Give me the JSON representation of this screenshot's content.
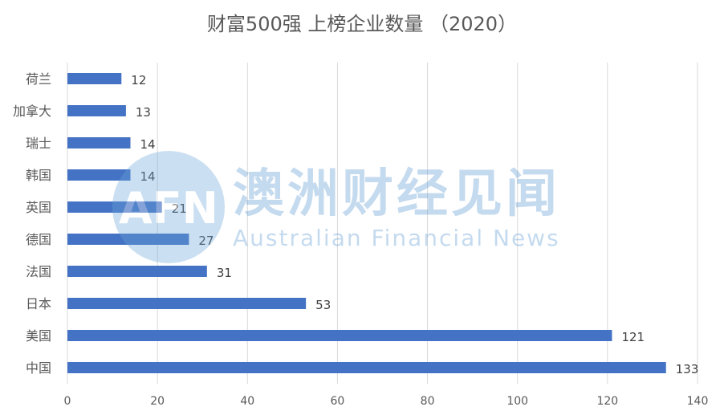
{
  "chart_data": {
    "type": "bar",
    "orientation": "horizontal",
    "title": "财富500强 上榜企业数量 （2020）",
    "categories": [
      "荷兰",
      "加拿大",
      "瑞士",
      "韩国",
      "英国",
      "德国",
      "法国",
      "日本",
      "美国",
      "中国"
    ],
    "values": [
      12,
      13,
      14,
      14,
      21,
      27,
      31,
      53,
      121,
      133
    ],
    "xlim": [
      0,
      140
    ],
    "xticks": [
      "0",
      "20",
      "40",
      "60",
      "80",
      "100",
      "120",
      "140"
    ],
    "grid": true,
    "bar_color": "#4472c4",
    "legend": "none"
  },
  "watermark": {
    "logo": "AFN",
    "cn": "澳洲财经见闻",
    "en": "Australian Financial News"
  }
}
